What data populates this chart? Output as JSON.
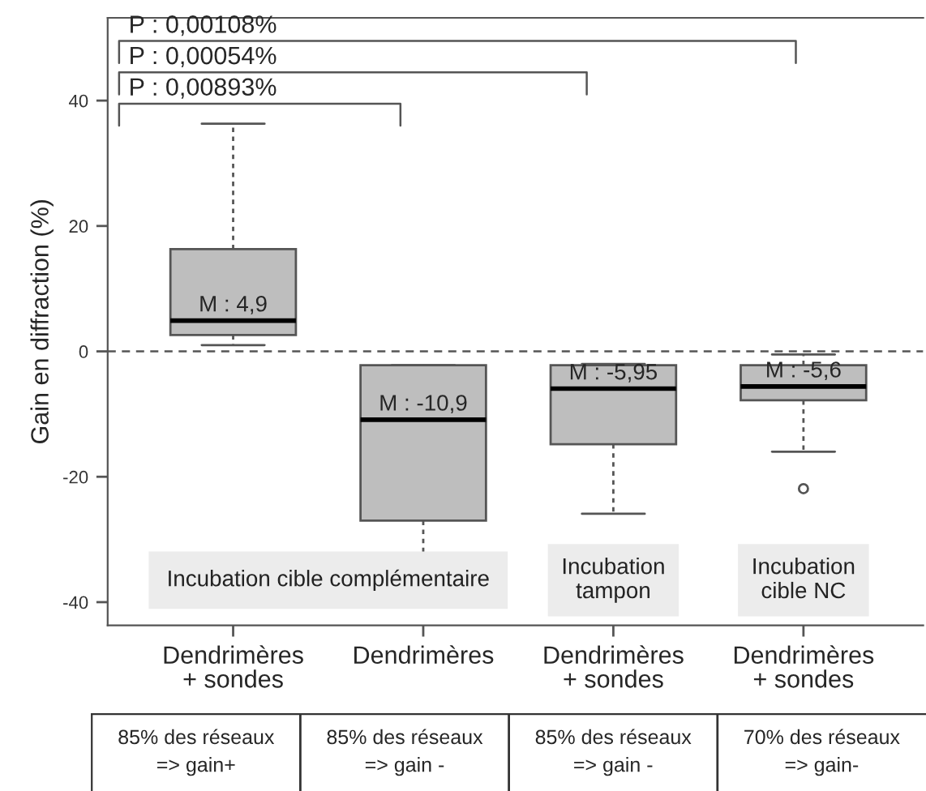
{
  "chart_data": {
    "type": "box",
    "ylabel": "Gain en diffraction (%)",
    "categories": [
      "Dendrimères\n+ sondes",
      "Dendrimères",
      "Dendrimères\n+ sondes",
      "Dendrimères\n+ sondes"
    ],
    "boxes": [
      {
        "low": 1.0,
        "q1": 2.6,
        "median": 4.9,
        "q3": 16.3,
        "high": 36.3
      },
      {
        "low": -32.8,
        "q1": -27.0,
        "median": -10.9,
        "q3": -2.2,
        "high": -2.2
      },
      {
        "low": -25.9,
        "q1": -14.8,
        "median": -5.95,
        "q3": -2.2,
        "high": -2.0
      },
      {
        "low": -16.0,
        "q1": -7.8,
        "median": -5.6,
        "q3": -2.2,
        "high": -0.5,
        "outliers": [
          -21.9
        ]
      }
    ],
    "color": "#bebebe",
    "ylim": [
      -43.7,
      53.2
    ],
    "yticks": [
      {
        "value": -40,
        "label": "-40"
      },
      {
        "value": -20,
        "label": "-20"
      },
      0,
      20,
      40
    ],
    "grid": false,
    "ref_lines": [
      {
        "axis": "y",
        "value": 0,
        "line_style": "dashed",
        "color": "#555555"
      }
    ],
    "annotations": [
      "M : 4,9",
      "M : -10,9",
      "M : -5,95",
      "M : -5,6",
      "P : 0,00108%",
      "P : 0,00054%",
      "P : 0,00893%",
      "Incubation cible complémentaire",
      "Incubation\ntampon",
      "Incubation\ncible NC",
      "85% des réseaux\n=> gain+",
      "85% des réseaux\n=> gain -",
      "85% des réseaux\n=> gain -",
      "70% des réseaux\n=> gain-"
    ]
  }
}
